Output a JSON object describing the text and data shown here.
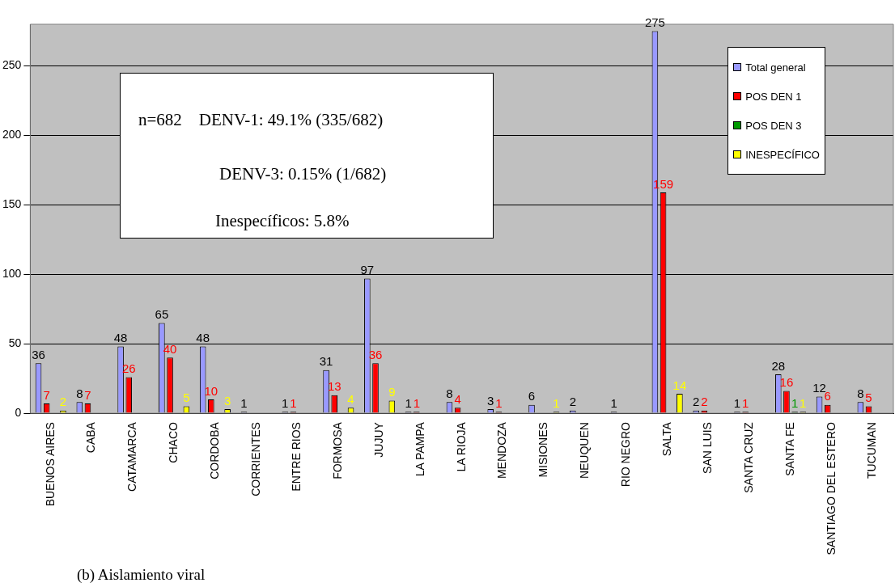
{
  "chart_data": {
    "type": "bar",
    "categories": [
      "BUENOS AIRES",
      "CABA",
      "CATAMARCA",
      "CHACO",
      "CORDOBA",
      "CORRIENTES",
      "ENTRE RIOS",
      "FORMOSA",
      "JUJUY",
      "LA PAMPA",
      "LA RIOJA",
      "MENDOZA",
      "MISIONES",
      "NEUQUEN",
      "RIO NEGRO",
      "SALTA",
      "SAN LUIS",
      "SANTA CRUZ",
      "SANTA FE",
      "SANTIAGO DEL ESTERO",
      "TUCUMAN"
    ],
    "series": [
      {
        "name": "Total general",
        "color": "#9999ff",
        "values": [
          36,
          8,
          48,
          65,
          48,
          1,
          1,
          31,
          97,
          1,
          8,
          3,
          6,
          2,
          1,
          275,
          2,
          1,
          28,
          12,
          8
        ]
      },
      {
        "name": "POS DEN 1",
        "color": "#ff0000",
        "values": [
          7,
          7,
          26,
          40,
          10,
          null,
          1,
          13,
          36,
          1,
          4,
          1,
          null,
          null,
          null,
          159,
          2,
          1,
          16,
          6,
          5
        ]
      },
      {
        "name": "POS DEN 3",
        "color": "#009900",
        "values": [
          null,
          null,
          null,
          null,
          null,
          null,
          null,
          null,
          null,
          null,
          null,
          null,
          null,
          null,
          null,
          null,
          null,
          null,
          1,
          null,
          null
        ]
      },
      {
        "name": "INESPECÍFICO",
        "color": "#ffff00",
        "values": [
          2,
          null,
          null,
          5,
          3,
          null,
          null,
          4,
          9,
          null,
          null,
          null,
          1,
          null,
          null,
          14,
          null,
          null,
          1,
          null,
          null
        ]
      }
    ],
    "ylim": [
      0,
      280
    ],
    "yticks": [
      0,
      50,
      100,
      150,
      200,
      250
    ],
    "grid": "y",
    "legend": "top right",
    "data_labels": true,
    "annotations": [
      "n=682    DENV-1: 49.1% (335/682)",
      "DENV-3: 0.15% (1/682)",
      "Inespecíficos: 5.8%",
      "(b)  Aislamiento viral"
    ]
  }
}
